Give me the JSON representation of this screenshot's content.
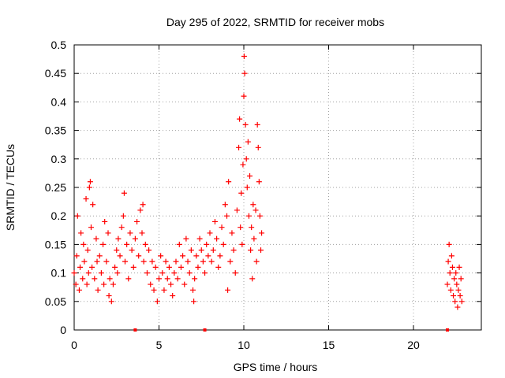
{
  "chart_data": {
    "type": "scatter",
    "title": "Day 295 of 2022, SRMTID for receiver mobs",
    "xlabel": "GPS time / hours",
    "ylabel": "SRMTID / TECUs",
    "xlim": [
      0,
      24
    ],
    "ylim": [
      0,
      0.5
    ],
    "xticks": [
      "0",
      "5",
      "10",
      "15",
      "20"
    ],
    "yticks": [
      "0",
      "0.05",
      "0.1",
      "0.15",
      "0.2",
      "0.25",
      "0.3",
      "0.35",
      "0.4",
      "0.45",
      "0.5"
    ],
    "grid": true,
    "marker": "plus",
    "color": "#ff0000",
    "series": [
      {
        "values_xy": [
          [
            0.0,
            0.1
          ],
          [
            0.1,
            0.08
          ],
          [
            0.15,
            0.13
          ],
          [
            0.2,
            0.2
          ],
          [
            0.3,
            0.07
          ],
          [
            0.35,
            0.11
          ],
          [
            0.4,
            0.17
          ],
          [
            0.5,
            0.09
          ],
          [
            0.55,
            0.15
          ],
          [
            0.6,
            0.12
          ],
          [
            0.7,
            0.23
          ],
          [
            0.75,
            0.08
          ],
          [
            0.8,
            0.14
          ],
          [
            0.85,
            0.1
          ],
          [
            0.9,
            0.25
          ],
          [
            0.95,
            0.26
          ],
          [
            1.0,
            0.18
          ],
          [
            1.05,
            0.11
          ],
          [
            1.1,
            0.22
          ],
          [
            1.2,
            0.09
          ],
          [
            1.3,
            0.16
          ],
          [
            1.35,
            0.12
          ],
          [
            1.4,
            0.07
          ],
          [
            1.5,
            0.13
          ],
          [
            1.6,
            0.1
          ],
          [
            1.7,
            0.15
          ],
          [
            1.75,
            0.08
          ],
          [
            1.8,
            0.19
          ],
          [
            1.9,
            0.12
          ],
          [
            2.0,
            0.17
          ],
          [
            2.05,
            0.06
          ],
          [
            2.1,
            0.09
          ],
          [
            2.2,
            0.05
          ],
          [
            2.3,
            0.08
          ],
          [
            2.4,
            0.11
          ],
          [
            2.5,
            0.14
          ],
          [
            2.55,
            0.1
          ],
          [
            2.6,
            0.16
          ],
          [
            2.7,
            0.13
          ],
          [
            2.8,
            0.18
          ],
          [
            2.9,
            0.2
          ],
          [
            2.95,
            0.24
          ],
          [
            3.0,
            0.12
          ],
          [
            3.1,
            0.15
          ],
          [
            3.2,
            0.09
          ],
          [
            3.3,
            0.17
          ],
          [
            3.4,
            0.14
          ],
          [
            3.5,
            0.11
          ],
          [
            3.6,
            0.16
          ],
          [
            3.7,
            0.19
          ],
          [
            3.8,
            0.13
          ],
          [
            3.9,
            0.21
          ],
          [
            4.0,
            0.17
          ],
          [
            4.05,
            0.22
          ],
          [
            4.1,
            0.12
          ],
          [
            4.2,
            0.15
          ],
          [
            4.3,
            0.1
          ],
          [
            4.4,
            0.14
          ],
          [
            4.5,
            0.08
          ],
          [
            4.6,
            0.12
          ],
          [
            4.7,
            0.07
          ],
          [
            4.8,
            0.11
          ],
          [
            4.9,
            0.05
          ],
          [
            5.0,
            0.09
          ],
          [
            5.1,
            0.13
          ],
          [
            5.2,
            0.1
          ],
          [
            5.3,
            0.07
          ],
          [
            5.4,
            0.12
          ],
          [
            5.5,
            0.09
          ],
          [
            5.6,
            0.11
          ],
          [
            5.7,
            0.08
          ],
          [
            5.8,
            0.06
          ],
          [
            5.9,
            0.1
          ],
          [
            6.0,
            0.12
          ],
          [
            6.1,
            0.09
          ],
          [
            6.2,
            0.15
          ],
          [
            6.3,
            0.11
          ],
          [
            6.4,
            0.13
          ],
          [
            6.5,
            0.08
          ],
          [
            6.6,
            0.16
          ],
          [
            6.7,
            0.12
          ],
          [
            6.8,
            0.1
          ],
          [
            6.9,
            0.14
          ],
          [
            7.0,
            0.07
          ],
          [
            7.05,
            0.05
          ],
          [
            7.1,
            0.09
          ],
          [
            7.2,
            0.13
          ],
          [
            7.3,
            0.11
          ],
          [
            7.4,
            0.16
          ],
          [
            7.5,
            0.14
          ],
          [
            7.6,
            0.12
          ],
          [
            7.7,
            0.1
          ],
          [
            7.8,
            0.15
          ],
          [
            7.9,
            0.13
          ],
          [
            8.0,
            0.17
          ],
          [
            8.1,
            0.12
          ],
          [
            8.2,
            0.14
          ],
          [
            8.3,
            0.19
          ],
          [
            8.4,
            0.16
          ],
          [
            8.5,
            0.11
          ],
          [
            8.6,
            0.13
          ],
          [
            8.7,
            0.18
          ],
          [
            8.8,
            0.15
          ],
          [
            8.9,
            0.22
          ],
          [
            9.0,
            0.2
          ],
          [
            9.05,
            0.07
          ],
          [
            9.1,
            0.26
          ],
          [
            9.2,
            0.12
          ],
          [
            9.3,
            0.17
          ],
          [
            9.4,
            0.14
          ],
          [
            9.5,
            0.1
          ],
          [
            9.6,
            0.21
          ],
          [
            9.7,
            0.32
          ],
          [
            9.75,
            0.37
          ],
          [
            9.8,
            0.18
          ],
          [
            9.85,
            0.24
          ],
          [
            9.9,
            0.15
          ],
          [
            9.95,
            0.29
          ],
          [
            10.0,
            0.41
          ],
          [
            10.02,
            0.48
          ],
          [
            10.05,
            0.45
          ],
          [
            10.1,
            0.36
          ],
          [
            10.15,
            0.3
          ],
          [
            10.2,
            0.25
          ],
          [
            10.25,
            0.33
          ],
          [
            10.3,
            0.2
          ],
          [
            10.35,
            0.27
          ],
          [
            10.4,
            0.14
          ],
          [
            10.45,
            0.18
          ],
          [
            10.5,
            0.09
          ],
          [
            10.55,
            0.22
          ],
          [
            10.6,
            0.16
          ],
          [
            10.7,
            0.21
          ],
          [
            10.75,
            0.12
          ],
          [
            10.8,
            0.36
          ],
          [
            10.85,
            0.32
          ],
          [
            10.9,
            0.26
          ],
          [
            10.95,
            0.2
          ],
          [
            11.0,
            0.14
          ],
          [
            11.05,
            0.17
          ],
          [
            22.0,
            0.08
          ],
          [
            22.05,
            0.12
          ],
          [
            22.1,
            0.15
          ],
          [
            22.15,
            0.1
          ],
          [
            22.2,
            0.07
          ],
          [
            22.25,
            0.13
          ],
          [
            22.3,
            0.11
          ],
          [
            22.35,
            0.06
          ],
          [
            22.4,
            0.09
          ],
          [
            22.45,
            0.05
          ],
          [
            22.5,
            0.1
          ],
          [
            22.55,
            0.08
          ],
          [
            22.6,
            0.04
          ],
          [
            22.65,
            0.07
          ],
          [
            22.7,
            0.11
          ],
          [
            22.75,
            0.06
          ],
          [
            22.8,
            0.09
          ],
          [
            22.85,
            0.05
          ]
        ]
      }
    ],
    "axis_markers_x": [
      3.6,
      7.7,
      22.0
    ]
  }
}
